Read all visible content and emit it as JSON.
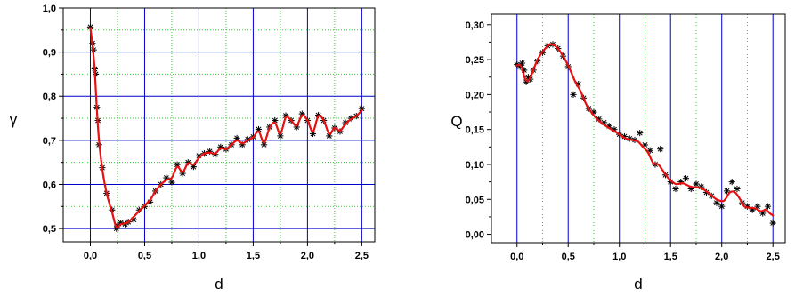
{
  "chart_data": [
    {
      "type": "scatter",
      "xlabel": "d",
      "ylabel": "γ",
      "xlim": [
        -0.25,
        2.62
      ],
      "ylim": [
        0.47,
        1.0
      ],
      "xticks": [
        "0,0",
        "0,5",
        "1,0",
        "1,5",
        "2,0",
        "2,5"
      ],
      "yticks": [
        "0,5",
        "0,6",
        "0,7",
        "0,8",
        "0,9",
        "1,0"
      ],
      "grid": {
        "major": {
          "x": [
            0,
            0.5,
            1.0,
            1.5,
            2.0,
            2.5
          ],
          "y": [
            0.5,
            0.6,
            0.7,
            0.8,
            0.9,
            1.0
          ],
          "color": "#0000cc"
        },
        "minor": {
          "x": [
            0.25,
            0.75,
            1.25,
            1.75,
            2.25
          ],
          "y": [
            0.55,
            0.65,
            0.75,
            0.85,
            0.95
          ],
          "color": "#33cc33"
        }
      },
      "series": [
        {
          "marker": "asterisk",
          "color": "#000000",
          "points": [
            [
              0.0,
              0.957
            ],
            [
              0.02,
              0.92
            ],
            [
              0.03,
              0.905
            ],
            [
              0.04,
              0.862
            ],
            [
              0.05,
              0.85
            ],
            [
              0.06,
              0.775
            ],
            [
              0.07,
              0.745
            ],
            [
              0.08,
              0.69
            ],
            [
              0.11,
              0.638
            ],
            [
              0.15,
              0.58
            ],
            [
              0.2,
              0.542
            ],
            [
              0.24,
              0.5
            ],
            [
              0.25,
              0.507
            ],
            [
              0.28,
              0.513
            ],
            [
              0.32,
              0.51
            ],
            [
              0.35,
              0.515
            ],
            [
              0.4,
              0.52
            ],
            [
              0.45,
              0.542
            ],
            [
              0.5,
              0.55
            ],
            [
              0.55,
              0.56
            ],
            [
              0.6,
              0.585
            ],
            [
              0.65,
              0.6
            ],
            [
              0.7,
              0.615
            ],
            [
              0.75,
              0.605
            ],
            [
              0.8,
              0.645
            ],
            [
              0.85,
              0.625
            ],
            [
              0.9,
              0.65
            ],
            [
              0.95,
              0.64
            ],
            [
              1.0,
              0.665
            ],
            [
              1.05,
              0.67
            ],
            [
              1.1,
              0.675
            ],
            [
              1.15,
              0.668
            ],
            [
              1.2,
              0.685
            ],
            [
              1.25,
              0.68
            ],
            [
              1.3,
              0.69
            ],
            [
              1.35,
              0.705
            ],
            [
              1.4,
              0.69
            ],
            [
              1.45,
              0.702
            ],
            [
              1.5,
              0.708
            ],
            [
              1.55,
              0.725
            ],
            [
              1.6,
              0.69
            ],
            [
              1.65,
              0.73
            ],
            [
              1.7,
              0.745
            ],
            [
              1.75,
              0.71
            ],
            [
              1.8,
              0.756
            ],
            [
              1.85,
              0.745
            ],
            [
              1.9,
              0.73
            ],
            [
              1.95,
              0.76
            ],
            [
              2.0,
              0.745
            ],
            [
              2.05,
              0.715
            ],
            [
              2.1,
              0.757
            ],
            [
              2.15,
              0.745
            ],
            [
              2.2,
              0.71
            ],
            [
              2.25,
              0.728
            ],
            [
              2.3,
              0.72
            ],
            [
              2.35,
              0.74
            ],
            [
              2.4,
              0.75
            ],
            [
              2.45,
              0.755
            ],
            [
              2.5,
              0.772
            ]
          ]
        },
        {
          "marker": "none",
          "color": "#e81010",
          "smooth_fit": true,
          "points": [
            [
              0.0,
              0.955
            ],
            [
              0.02,
              0.915
            ],
            [
              0.04,
              0.86
            ],
            [
              0.06,
              0.77
            ],
            [
              0.08,
              0.7
            ],
            [
              0.11,
              0.635
            ],
            [
              0.15,
              0.58
            ],
            [
              0.2,
              0.537
            ],
            [
              0.24,
              0.503
            ],
            [
              0.28,
              0.51
            ],
            [
              0.35,
              0.515
            ],
            [
              0.45,
              0.54
            ],
            [
              0.55,
              0.565
            ],
            [
              0.6,
              0.585
            ],
            [
              0.65,
              0.6
            ],
            [
              0.7,
              0.61
            ],
            [
              0.75,
              0.615
            ],
            [
              0.8,
              0.64
            ],
            [
              0.85,
              0.628
            ],
            [
              0.9,
              0.648
            ],
            [
              0.95,
              0.645
            ],
            [
              1.0,
              0.66
            ],
            [
              1.05,
              0.67
            ],
            [
              1.1,
              0.672
            ],
            [
              1.15,
              0.67
            ],
            [
              1.2,
              0.682
            ],
            [
              1.25,
              0.68
            ],
            [
              1.3,
              0.69
            ],
            [
              1.35,
              0.7
            ],
            [
              1.4,
              0.693
            ],
            [
              1.45,
              0.7
            ],
            [
              1.5,
              0.707
            ],
            [
              1.55,
              0.72
            ],
            [
              1.6,
              0.695
            ],
            [
              1.65,
              0.728
            ],
            [
              1.7,
              0.74
            ],
            [
              1.75,
              0.715
            ],
            [
              1.8,
              0.752
            ],
            [
              1.85,
              0.745
            ],
            [
              1.9,
              0.733
            ],
            [
              1.95,
              0.757
            ],
            [
              2.0,
              0.745
            ],
            [
              2.05,
              0.72
            ],
            [
              2.1,
              0.755
            ],
            [
              2.15,
              0.745
            ],
            [
              2.2,
              0.715
            ],
            [
              2.25,
              0.728
            ],
            [
              2.3,
              0.722
            ],
            [
              2.35,
              0.737
            ],
            [
              2.4,
              0.748
            ],
            [
              2.45,
              0.755
            ],
            [
              2.5,
              0.768
            ]
          ]
        }
      ]
    },
    {
      "type": "scatter",
      "xlabel": "d",
      "ylabel": "Q",
      "xlim": [
        -0.25,
        2.62
      ],
      "ylim": [
        -0.012,
        0.315
      ],
      "xticks": [
        "0,0",
        "0,5",
        "1,0",
        "1,5",
        "2,0",
        "2,5"
      ],
      "yticks": [
        "0,00",
        "0,05",
        "0,10",
        "0,15",
        "0,20",
        "0,25",
        "0,30"
      ],
      "grid": {
        "major": {
          "x": [
            0,
            0.5,
            1.0,
            1.5,
            2.0,
            2.5
          ],
          "y": [],
          "color": "#0000cc"
        },
        "minor": {
          "x": [
            0.25,
            0.75,
            1.25,
            1.75,
            2.25
          ],
          "y": [],
          "color": "#33cc33"
        }
      },
      "series": [
        {
          "marker": "asterisk",
          "color": "#000000",
          "points": [
            [
              0.0,
              0.243
            ],
            [
              0.03,
              0.24
            ],
            [
              0.05,
              0.245
            ],
            [
              0.07,
              0.235
            ],
            [
              0.09,
              0.218
            ],
            [
              0.11,
              0.225
            ],
            [
              0.13,
              0.222
            ],
            [
              0.16,
              0.235
            ],
            [
              0.2,
              0.248
            ],
            [
              0.25,
              0.26
            ],
            [
              0.3,
              0.27
            ],
            [
              0.35,
              0.272
            ],
            [
              0.4,
              0.266
            ],
            [
              0.45,
              0.255
            ],
            [
              0.5,
              0.24
            ],
            [
              0.55,
              0.2
            ],
            [
              0.6,
              0.215
            ],
            [
              0.65,
              0.195
            ],
            [
              0.7,
              0.18
            ],
            [
              0.75,
              0.175
            ],
            [
              0.8,
              0.165
            ],
            [
              0.85,
              0.16
            ],
            [
              0.9,
              0.155
            ],
            [
              0.95,
              0.15
            ],
            [
              1.0,
              0.143
            ],
            [
              1.05,
              0.14
            ],
            [
              1.1,
              0.137
            ],
            [
              1.15,
              0.135
            ],
            [
              1.2,
              0.145
            ],
            [
              1.25,
              0.128
            ],
            [
              1.3,
              0.12
            ],
            [
              1.35,
              0.1
            ],
            [
              1.4,
              0.122
            ],
            [
              1.45,
              0.085
            ],
            [
              1.5,
              0.075
            ],
            [
              1.55,
              0.065
            ],
            [
              1.6,
              0.075
            ],
            [
              1.65,
              0.08
            ],
            [
              1.7,
              0.065
            ],
            [
              1.75,
              0.072
            ],
            [
              1.8,
              0.068
            ],
            [
              1.85,
              0.06
            ],
            [
              1.9,
              0.055
            ],
            [
              1.95,
              0.045
            ],
            [
              2.0,
              0.04
            ],
            [
              2.05,
              0.062
            ],
            [
              2.1,
              0.075
            ],
            [
              2.15,
              0.065
            ],
            [
              2.2,
              0.045
            ],
            [
              2.25,
              0.04
            ],
            [
              2.3,
              0.035
            ],
            [
              2.35,
              0.04
            ],
            [
              2.4,
              0.03
            ],
            [
              2.45,
              0.04
            ],
            [
              2.5,
              0.016
            ]
          ]
        },
        {
          "marker": "none",
          "color": "#e81010",
          "smooth_fit": true,
          "points": [
            [
              0.0,
              0.242
            ],
            [
              0.03,
              0.242
            ],
            [
              0.05,
              0.237
            ],
            [
              0.08,
              0.222
            ],
            [
              0.11,
              0.22
            ],
            [
              0.14,
              0.228
            ],
            [
              0.18,
              0.243
            ],
            [
              0.22,
              0.255
            ],
            [
              0.27,
              0.265
            ],
            [
              0.32,
              0.272
            ],
            [
              0.37,
              0.27
            ],
            [
              0.42,
              0.262
            ],
            [
              0.47,
              0.25
            ],
            [
              0.52,
              0.235
            ],
            [
              0.57,
              0.218
            ],
            [
              0.62,
              0.205
            ],
            [
              0.68,
              0.185
            ],
            [
              0.75,
              0.17
            ],
            [
              0.82,
              0.16
            ],
            [
              0.9,
              0.152
            ],
            [
              0.98,
              0.145
            ],
            [
              1.05,
              0.138
            ],
            [
              1.12,
              0.135
            ],
            [
              1.18,
              0.133
            ],
            [
              1.23,
              0.125
            ],
            [
              1.28,
              0.117
            ],
            [
              1.33,
              0.102
            ],
            [
              1.38,
              0.1
            ],
            [
              1.43,
              0.09
            ],
            [
              1.48,
              0.08
            ],
            [
              1.55,
              0.072
            ],
            [
              1.62,
              0.073
            ],
            [
              1.7,
              0.068
            ],
            [
              1.8,
              0.066
            ],
            [
              1.88,
              0.058
            ],
            [
              1.95,
              0.05
            ],
            [
              2.02,
              0.048
            ],
            [
              2.08,
              0.06
            ],
            [
              2.13,
              0.06
            ],
            [
              2.18,
              0.05
            ],
            [
              2.22,
              0.04
            ],
            [
              2.27,
              0.038
            ],
            [
              2.33,
              0.037
            ],
            [
              2.38,
              0.033
            ],
            [
              2.43,
              0.035
            ],
            [
              2.47,
              0.03
            ],
            [
              2.5,
              0.027
            ]
          ]
        }
      ]
    }
  ]
}
